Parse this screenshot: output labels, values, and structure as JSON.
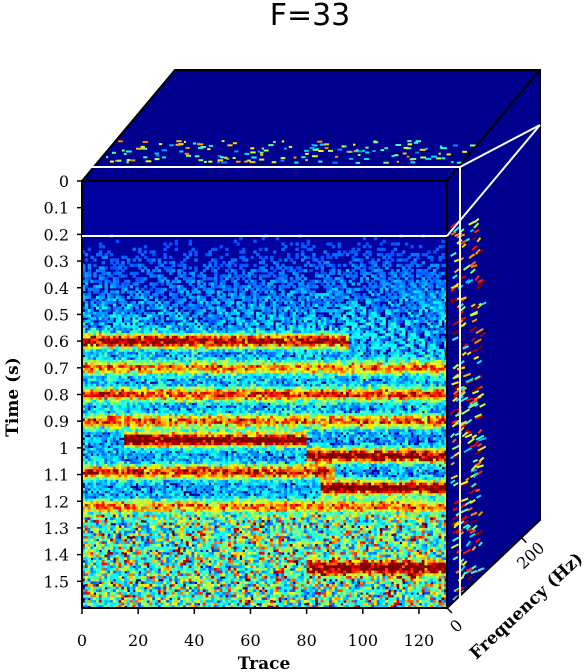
{
  "chart_data": {
    "type": "heatmap",
    "title": "F=33",
    "colormap": "jet",
    "xlabel": "Trace",
    "ylabel": "Time (s)",
    "zlabel": "Frequency (Hz)",
    "x_range": [
      0,
      130
    ],
    "x_ticks": [
      "0",
      "20",
      "40",
      "60",
      "80",
      "100",
      "120"
    ],
    "x_tick_values": [
      0,
      20,
      40,
      60,
      80,
      100,
      120
    ],
    "y_range": [
      0,
      1.6
    ],
    "y_ticks": [
      "0",
      "0.1",
      "0.2",
      "0.3",
      "0.4",
      "0.5",
      "0.6",
      "0.7",
      "0.8",
      "0.9",
      "1",
      "1.1",
      "1.2",
      "1.3",
      "1.4",
      "1.5"
    ],
    "y_tick_values": [
      0,
      0.1,
      0.2,
      0.3,
      0.4,
      0.5,
      0.6,
      0.7,
      0.8,
      0.9,
      1.0,
      1.1,
      1.2,
      1.3,
      1.4,
      1.5
    ],
    "z_ticks": [
      "0",
      "200"
    ],
    "z_tick_values": [
      0,
      200
    ],
    "front_slice_frequency_hz": 33,
    "top_slice_time_s": 0.2,
    "side_slice_trace": 130,
    "event_bands_time_s": [
      {
        "t": 0.6,
        "amplitude": 0.85,
        "x_from": 0,
        "x_to": 95
      },
      {
        "t": 0.7,
        "amplitude": 0.55,
        "x_from": 0,
        "x_to": 130
      },
      {
        "t": 0.8,
        "amplitude": 0.65,
        "x_from": 0,
        "x_to": 130
      },
      {
        "t": 0.9,
        "amplitude": 0.6,
        "x_from": 0,
        "x_to": 130
      },
      {
        "t": 0.97,
        "amplitude": 0.95,
        "x_from": 15,
        "x_to": 80
      },
      {
        "t": 1.03,
        "amplitude": 0.9,
        "x_from": 80,
        "x_to": 130
      },
      {
        "t": 1.09,
        "amplitude": 0.7,
        "x_from": 0,
        "x_to": 90
      },
      {
        "t": 1.15,
        "amplitude": 0.95,
        "x_from": 85,
        "x_to": 130
      },
      {
        "t": 1.22,
        "amplitude": 0.55,
        "x_from": 0,
        "x_to": 130
      },
      {
        "t": 1.45,
        "amplitude": 0.75,
        "x_from": 80,
        "x_to": 130
      }
    ]
  }
}
